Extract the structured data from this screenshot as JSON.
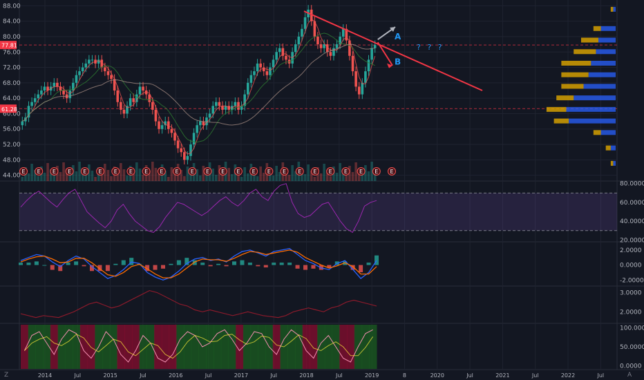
{
  "chart_data": [
    {
      "type": "candlestick",
      "panel": "price",
      "x_labels": [
        "2014",
        "Jul",
        "2015",
        "Jul",
        "2016",
        "Jul",
        "2017",
        "Jul",
        "2018",
        "Jul",
        "2019",
        "8",
        "2020",
        "Jul",
        "2021",
        "Jul",
        "2022",
        "Jul"
      ],
      "y_ticks": [
        "88.00",
        "84.00",
        "80.00",
        "76.00",
        "72.00",
        "68.00",
        "64.00",
        "60.00",
        "56.00",
        "52.00",
        "48.00",
        "44.00"
      ],
      "ylim": [
        42.5,
        89.5
      ],
      "price_labels": [
        {
          "text": "77.81",
          "value": 77.81,
          "color": "#f23645"
        },
        {
          "text": "61.28",
          "value": 61.28,
          "color": "#f23645"
        }
      ],
      "closes_weekly": [
        58,
        59,
        62,
        63,
        64,
        65,
        66,
        67,
        66,
        67,
        68,
        67,
        66,
        65,
        64,
        66,
        68,
        70,
        71,
        72,
        73,
        74,
        74,
        73,
        74,
        72,
        71,
        70,
        69,
        66,
        63,
        61,
        60,
        62,
        64,
        63,
        65,
        67,
        66,
        65,
        63,
        61,
        58,
        56,
        57,
        58,
        56,
        55,
        53,
        51,
        50,
        48,
        49,
        52,
        55,
        57,
        58,
        57,
        59,
        60,
        62,
        63,
        62,
        61,
        62,
        61,
        62,
        63,
        61,
        62,
        65,
        68,
        70,
        71,
        73,
        72,
        71,
        70,
        72,
        74,
        76,
        77,
        75,
        74,
        73,
        76,
        78,
        80,
        82,
        85,
        87,
        84,
        80,
        78,
        77,
        78,
        76,
        75,
        77,
        78,
        80,
        82,
        79,
        75,
        71,
        67,
        65,
        68,
        71,
        74,
        77,
        77.81
      ],
      "trendline": {
        "from": [
          0.0,
          86.6
        ],
        "to": [
          1.0,
          66.0
        ],
        "color": "#f23645"
      },
      "annotations": [
        {
          "text": "A",
          "color": "#2196f3"
        },
        {
          "text": "B",
          "color": "#2196f3"
        },
        {
          "text": "? ? ?",
          "color": "#2196f3"
        }
      ],
      "earnings_marker": "E",
      "earnings_count": 25,
      "volume_profile": {
        "up_color": "#2962ff",
        "down_color": "#e0a800",
        "rows": [
          {
            "price": 87,
            "up": 0.05,
            "down": 0.05
          },
          {
            "price": 82,
            "up": 0.3,
            "down": 0.15
          },
          {
            "price": 79,
            "up": 0.35,
            "down": 0.35
          },
          {
            "price": 76,
            "up": 0.4,
            "down": 0.45
          },
          {
            "price": 73,
            "up": 0.5,
            "down": 0.6
          },
          {
            "price": 70,
            "up": 0.55,
            "down": 0.55
          },
          {
            "price": 67,
            "up": 0.65,
            "down": 0.45
          },
          {
            "price": 64,
            "up": 0.85,
            "down": 0.35
          },
          {
            "price": 61,
            "up": 1.0,
            "down": 0.4
          },
          {
            "price": 58,
            "up": 0.95,
            "down": 0.3
          },
          {
            "price": 55,
            "up": 0.3,
            "down": 0.15
          },
          {
            "price": 51,
            "up": 0.1,
            "down": 0.1
          },
          {
            "price": 47,
            "up": 0.05,
            "down": 0.05
          }
        ]
      }
    },
    {
      "type": "line",
      "panel": "rsi",
      "y_ticks": [
        "80.0000",
        "60.0000",
        "40.0000",
        "20.0000"
      ],
      "ylim": [
        18,
        82
      ],
      "bands": [
        70,
        30
      ],
      "color": "#9c27b0",
      "values": [
        55,
        62,
        68,
        72,
        66,
        60,
        55,
        63,
        70,
        74,
        62,
        50,
        44,
        38,
        33,
        40,
        52,
        58,
        48,
        40,
        35,
        30,
        28,
        34,
        44,
        52,
        60,
        58,
        54,
        50,
        46,
        50,
        56,
        62,
        66,
        60,
        56,
        62,
        70,
        74,
        66,
        62,
        72,
        78,
        80,
        60,
        48,
        44,
        46,
        52,
        58,
        60,
        50,
        40,
        32,
        28,
        40,
        56,
        60,
        62
      ]
    },
    {
      "type": "bar+line",
      "panel": "macd",
      "y_ticks": [
        "2.0000",
        "0.0000",
        "-2.0000"
      ],
      "ylim": [
        -2.8,
        3.0
      ],
      "macd": [
        0.6,
        1.0,
        1.4,
        1.2,
        0.4,
        -0.2,
        0.6,
        1.2,
        0.8,
        -0.2,
        -1.0,
        -1.8,
        -1.4,
        -0.6,
        0.4,
        0.2,
        -1.0,
        -1.6,
        -2.0,
        -1.6,
        -0.8,
        0.2,
        0.8,
        1.0,
        0.6,
        0.8,
        0.4,
        1.2,
        1.8,
        2.0,
        1.6,
        1.2,
        1.8,
        2.0,
        2.2,
        1.4,
        0.6,
        0.2,
        -0.4,
        -0.6,
        0.2,
        0.6,
        -0.6,
        -1.8,
        -1.0,
        0.6
      ],
      "signal": [
        0.4,
        0.8,
        1.1,
        1.2,
        0.8,
        0.3,
        0.4,
        0.9,
        0.9,
        0.3,
        -0.5,
        -1.3,
        -1.5,
        -1.0,
        -0.2,
        0.1,
        -0.5,
        -1.2,
        -1.7,
        -1.7,
        -1.2,
        -0.4,
        0.4,
        0.8,
        0.7,
        0.7,
        0.5,
        0.9,
        1.4,
        1.8,
        1.7,
        1.4,
        1.6,
        1.8,
        2.0,
        1.7,
        1.0,
        0.5,
        0.0,
        -0.4,
        -0.1,
        0.3,
        -0.2,
        -1.2,
        -1.2,
        -0.2
      ],
      "macd_color": "#2962ff",
      "signal_color": "#ff6d00"
    },
    {
      "type": "line",
      "panel": "volatility",
      "y_ticks": [
        "3.0000",
        "2.0000"
      ],
      "ylim": [
        1.4,
        3.3
      ],
      "color": "#8b1a2b",
      "values": [
        1.9,
        1.8,
        1.7,
        1.8,
        1.75,
        1.7,
        1.85,
        2.0,
        2.2,
        2.4,
        2.5,
        2.35,
        2.2,
        2.3,
        2.5,
        2.7,
        2.9,
        3.1,
        3.0,
        2.8,
        2.6,
        2.4,
        2.3,
        2.1,
        2.0,
        2.1,
        2.0,
        1.9,
        1.8,
        1.9,
        2.0,
        1.9,
        1.8,
        1.75,
        1.7,
        1.8,
        2.0,
        2.1,
        2.2,
        2.1,
        2.0,
        2.2,
        2.3,
        2.5,
        2.6,
        2.5,
        2.4,
        2.3
      ]
    },
    {
      "type": "line",
      "panel": "stochastic",
      "y_ticks": [
        "100.0000",
        "50.0000",
        "0.0000"
      ],
      "ylim": [
        -10,
        110
      ],
      "values": [
        40,
        80,
        90,
        60,
        30,
        70,
        95,
        85,
        40,
        20,
        50,
        90,
        70,
        30,
        10,
        40,
        80,
        60,
        20,
        10,
        30,
        70,
        90,
        80,
        50,
        60,
        85,
        95,
        70,
        40,
        60,
        90,
        85,
        50,
        30,
        70,
        95,
        80,
        40,
        20,
        60,
        80,
        50,
        20,
        10,
        50,
        85,
        95
      ]
    }
  ]
}
